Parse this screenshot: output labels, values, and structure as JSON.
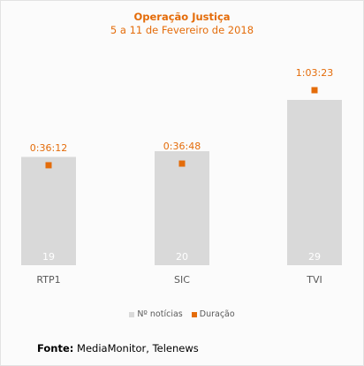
{
  "chart_data": {
    "type": "bar",
    "title": "Operação Justiça",
    "subtitle": "5 a 11 de Fevereiro de 2018",
    "categories": [
      "RTP1",
      "SIC",
      "TVI"
    ],
    "series": [
      {
        "name": "Nº notícias",
        "type": "bar",
        "values": [
          19,
          20,
          29
        ],
        "data_labels": [
          "19",
          "20",
          "29"
        ],
        "color": "#d9d9d9"
      },
      {
        "name": "Duração",
        "type": "scatter",
        "values_seconds": [
          2172,
          2208,
          3803
        ],
        "data_labels": [
          "0:36:12",
          "0:36:48",
          "1:03:23"
        ],
        "color": "#e46c0a"
      }
    ],
    "legend": "bottom",
    "grid": false
  },
  "source": {
    "label": "Fonte:",
    "text": "MediaMonitor, Telenews"
  }
}
